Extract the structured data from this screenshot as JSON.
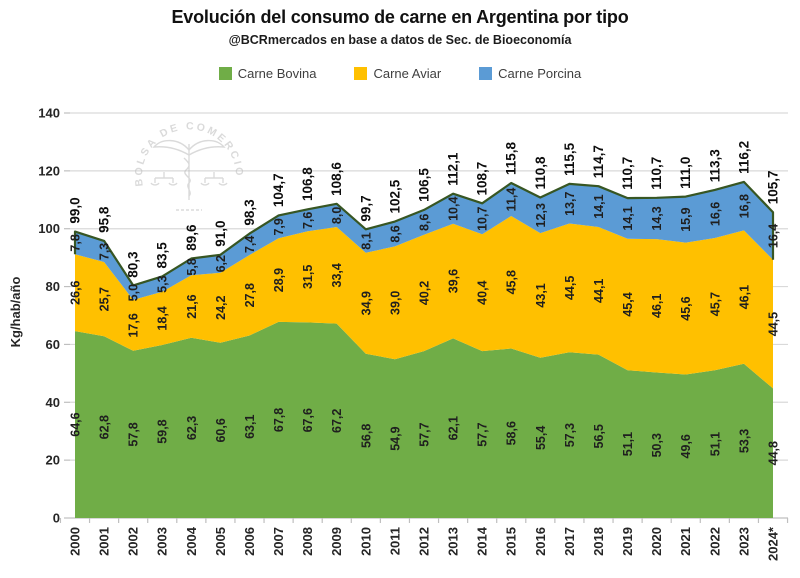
{
  "chart_data": {
    "type": "area",
    "stacked": true,
    "title": "Evolución del consumo de carne en Argentina por tipo",
    "subtitle": "@BCRmercados en base a datos de Sec. de Bioeconomía",
    "ylabel": "Kg/hab/año",
    "ylim": [
      0,
      140
    ],
    "ytick_step": 20,
    "grid": true,
    "legend_position": "top",
    "categories": [
      "2000",
      "2001",
      "2002",
      "2003",
      "2004",
      "2005",
      "2006",
      "2007",
      "2008",
      "2009",
      "2010",
      "2011",
      "2012",
      "2013",
      "2014",
      "2015",
      "2016",
      "2017",
      "2018",
      "2019",
      "2020",
      "2021",
      "2022",
      "2023",
      "2024*"
    ],
    "series": [
      {
        "name": "Carne Bovina",
        "color": "#70AD47",
        "values": [
          64.6,
          62.8,
          57.8,
          59.8,
          62.3,
          60.6,
          63.1,
          67.8,
          67.6,
          67.2,
          56.8,
          54.9,
          57.7,
          62.1,
          57.7,
          58.6,
          55.4,
          57.3,
          56.5,
          51.1,
          50.3,
          49.6,
          51.1,
          53.3,
          44.8
        ]
      },
      {
        "name": "Carne Aviar",
        "color": "#FFC000",
        "values": [
          26.6,
          25.7,
          17.6,
          18.4,
          21.6,
          24.2,
          27.8,
          28.9,
          31.5,
          33.4,
          34.9,
          39.0,
          40.2,
          39.6,
          40.4,
          45.8,
          43.1,
          44.5,
          44.1,
          45.4,
          46.1,
          45.6,
          45.7,
          46.1,
          44.5
        ]
      },
      {
        "name": "Carne Porcina",
        "color": "#5B9BD5",
        "outline": "#375623",
        "values": [
          7.8,
          7.3,
          5.0,
          5.3,
          5.8,
          6.2,
          7.4,
          7.9,
          7.6,
          8.0,
          8.1,
          8.6,
          8.6,
          10.4,
          10.7,
          11.4,
          12.3,
          13.7,
          14.1,
          14.1,
          14.3,
          15.9,
          16.6,
          16.8,
          16.4
        ]
      }
    ],
    "totals": [
      99.0,
      95.8,
      80.3,
      83.5,
      89.6,
      91.0,
      98.3,
      104.7,
      106.8,
      108.6,
      99.7,
      102.5,
      106.5,
      112.1,
      108.7,
      115.8,
      110.8,
      115.5,
      114.7,
      110.7,
      110.7,
      111.0,
      113.3,
      116.2,
      105.7
    ],
    "watermark": {
      "text": "BOLSA DE COMERCIO DE ROSARIO"
    },
    "colors": {
      "label": "#1f1f1f",
      "axis_text": "#262626",
      "gridline": "#d9d9d9",
      "axis_line": "#bfbfbf",
      "watermark": "#bdbdbd"
    }
  }
}
